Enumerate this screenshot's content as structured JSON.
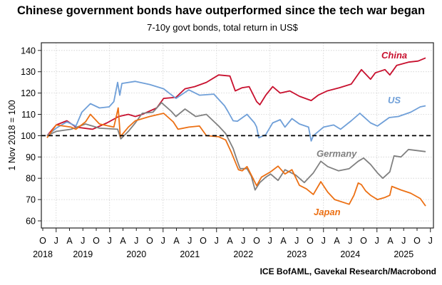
{
  "chart_data": {
    "type": "line",
    "title": "Chinese government bonds have outperformed since the tech war began",
    "subtitle": "7-10y govt bonds, total return in US$",
    "ylabel": "1 Nov 2018 = 100",
    "xlabel": "",
    "source": "ICE BofAML, Gavekal Research/Macrobond",
    "ylim": [
      58,
      142
    ],
    "xlim": [
      2018.72,
      2026.02
    ],
    "yticks": [
      60,
      70,
      80,
      90,
      100,
      110,
      120,
      130,
      140
    ],
    "reference_line": 100,
    "grid": true,
    "month_tick_labels": [
      "O",
      "J",
      "A",
      "J",
      "O",
      "J",
      "A",
      "J",
      "O",
      "J",
      "A",
      "J",
      "O",
      "J",
      "A",
      "J",
      "O",
      "J",
      "A",
      "J",
      "O",
      "J",
      "A",
      "J",
      "O",
      "J",
      "A",
      "J",
      "O",
      "J"
    ],
    "year_labels": [
      {
        "label": "2018",
        "at": 2018.75
      },
      {
        "label": "2019",
        "at": 2019.5
      },
      {
        "label": "2020",
        "at": 2020.5
      },
      {
        "label": "2021",
        "at": 2021.5
      },
      {
        "label": "2022",
        "at": 2022.5
      },
      {
        "label": "2023",
        "at": 2023.5
      },
      {
        "label": "2024",
        "at": 2024.5
      },
      {
        "label": "2025",
        "at": 2025.5
      }
    ],
    "series": [
      {
        "name": "China",
        "color": "#c8102e",
        "legend_position": "top-right",
        "points": [
          [
            2018.83,
            100
          ],
          [
            2019.0,
            105
          ],
          [
            2019.2,
            107
          ],
          [
            2019.37,
            104
          ],
          [
            2019.68,
            103
          ],
          [
            2019.95,
            106
          ],
          [
            2020.17,
            109
          ],
          [
            2020.35,
            110
          ],
          [
            2020.48,
            109
          ],
          [
            2020.61,
            110
          ],
          [
            2020.88,
            113
          ],
          [
            2021.01,
            117.5
          ],
          [
            2021.24,
            118
          ],
          [
            2021.41,
            122
          ],
          [
            2021.59,
            123
          ],
          [
            2021.81,
            125
          ],
          [
            2022.04,
            128.5
          ],
          [
            2022.25,
            128
          ],
          [
            2022.35,
            121
          ],
          [
            2022.48,
            122.5
          ],
          [
            2022.61,
            123
          ],
          [
            2022.75,
            116
          ],
          [
            2022.81,
            114.5
          ],
          [
            2022.92,
            119
          ],
          [
            2023.05,
            123
          ],
          [
            2023.19,
            120
          ],
          [
            2023.37,
            121
          ],
          [
            2023.55,
            118.5
          ],
          [
            2023.77,
            116.5
          ],
          [
            2023.9,
            119
          ],
          [
            2024.07,
            121
          ],
          [
            2024.3,
            122.5
          ],
          [
            2024.52,
            124.2
          ],
          [
            2024.71,
            131
          ],
          [
            2024.88,
            126.5
          ],
          [
            2024.97,
            129.5
          ],
          [
            2025.15,
            131
          ],
          [
            2025.24,
            128.5
          ],
          [
            2025.37,
            133
          ],
          [
            2025.59,
            134.5
          ],
          [
            2025.77,
            135
          ],
          [
            2025.91,
            136.5
          ]
        ]
      },
      {
        "name": "US",
        "color": "#6f9fd8",
        "legend_position": "right",
        "points": [
          [
            2018.83,
            100
          ],
          [
            2019.0,
            103.5
          ],
          [
            2019.2,
            106.5
          ],
          [
            2019.37,
            104.5
          ],
          [
            2019.48,
            111
          ],
          [
            2019.64,
            115
          ],
          [
            2019.81,
            113
          ],
          [
            2019.99,
            113.5
          ],
          [
            2020.08,
            116
          ],
          [
            2020.15,
            125
          ],
          [
            2020.19,
            119
          ],
          [
            2020.23,
            124.5
          ],
          [
            2020.48,
            125.5
          ],
          [
            2020.75,
            124
          ],
          [
            2021.01,
            122
          ],
          [
            2021.24,
            117.5
          ],
          [
            2021.48,
            121.5
          ],
          [
            2021.68,
            119
          ],
          [
            2021.95,
            119.5
          ],
          [
            2022.15,
            114
          ],
          [
            2022.21,
            111.5
          ],
          [
            2022.31,
            107
          ],
          [
            2022.39,
            106.8
          ],
          [
            2022.57,
            110
          ],
          [
            2022.71,
            106
          ],
          [
            2022.75,
            104
          ],
          [
            2022.79,
            99
          ],
          [
            2022.92,
            100.5
          ],
          [
            2023.05,
            106
          ],
          [
            2023.19,
            107.5
          ],
          [
            2023.28,
            104
          ],
          [
            2023.41,
            108
          ],
          [
            2023.55,
            105.5
          ],
          [
            2023.72,
            104
          ],
          [
            2023.77,
            97.5
          ],
          [
            2023.81,
            100
          ],
          [
            2024.0,
            104
          ],
          [
            2024.19,
            105
          ],
          [
            2024.32,
            103
          ],
          [
            2024.52,
            107
          ],
          [
            2024.68,
            110.5
          ],
          [
            2024.88,
            106
          ],
          [
            2025.01,
            104.5
          ],
          [
            2025.23,
            108.5
          ],
          [
            2025.4,
            109
          ],
          [
            2025.63,
            111
          ],
          [
            2025.81,
            113.5
          ],
          [
            2025.91,
            114
          ]
        ]
      },
      {
        "name": "Germany",
        "color": "#808080",
        "legend_position": "center-right",
        "points": [
          [
            2018.83,
            100
          ],
          [
            2019.0,
            102
          ],
          [
            2019.28,
            103
          ],
          [
            2019.55,
            105.5
          ],
          [
            2019.81,
            103.5
          ],
          [
            2020.15,
            103
          ],
          [
            2020.21,
            98.5
          ],
          [
            2020.35,
            102
          ],
          [
            2020.48,
            106
          ],
          [
            2020.61,
            110.5
          ],
          [
            2020.81,
            111
          ],
          [
            2020.97,
            115.5
          ],
          [
            2021.15,
            111.5
          ],
          [
            2021.24,
            109
          ],
          [
            2021.41,
            112.5
          ],
          [
            2021.61,
            109
          ],
          [
            2021.81,
            110
          ],
          [
            2022.04,
            104.5
          ],
          [
            2022.17,
            101
          ],
          [
            2022.31,
            94
          ],
          [
            2022.39,
            88
          ],
          [
            2022.44,
            84.5
          ],
          [
            2022.57,
            84.5
          ],
          [
            2022.65,
            81
          ],
          [
            2022.72,
            74.5
          ],
          [
            2022.81,
            78
          ],
          [
            2022.92,
            80.5
          ],
          [
            2023.01,
            82
          ],
          [
            2023.15,
            79
          ],
          [
            2023.28,
            84
          ],
          [
            2023.48,
            81.5
          ],
          [
            2023.64,
            78
          ],
          [
            2023.81,
            82.5
          ],
          [
            2023.95,
            88
          ],
          [
            2024.08,
            85.5
          ],
          [
            2024.28,
            83.5
          ],
          [
            2024.48,
            84.5
          ],
          [
            2024.65,
            88
          ],
          [
            2024.75,
            89.5
          ],
          [
            2024.88,
            86.5
          ],
          [
            2025.01,
            82.5
          ],
          [
            2025.11,
            80
          ],
          [
            2025.24,
            83
          ],
          [
            2025.32,
            90.5
          ],
          [
            2025.45,
            90
          ],
          [
            2025.59,
            93.5
          ],
          [
            2025.75,
            93
          ],
          [
            2025.91,
            92.5
          ]
        ]
      },
      {
        "name": "Japan",
        "color": "#ec7014",
        "legend_position": "bottom-right",
        "points": [
          [
            2018.83,
            99
          ],
          [
            2019.0,
            105
          ],
          [
            2019.28,
            104
          ],
          [
            2019.37,
            103
          ],
          [
            2019.55,
            106.5
          ],
          [
            2019.64,
            110
          ],
          [
            2019.81,
            105.5
          ],
          [
            2020.08,
            104
          ],
          [
            2020.16,
            113
          ],
          [
            2020.2,
            99.5
          ],
          [
            2020.35,
            104
          ],
          [
            2020.48,
            107
          ],
          [
            2020.75,
            109
          ],
          [
            2021.01,
            110.5
          ],
          [
            2021.19,
            106.5
          ],
          [
            2021.28,
            103
          ],
          [
            2021.48,
            104
          ],
          [
            2021.68,
            104.5
          ],
          [
            2021.81,
            100
          ],
          [
            2022.04,
            99.5
          ],
          [
            2022.17,
            98
          ],
          [
            2022.28,
            92
          ],
          [
            2022.41,
            84
          ],
          [
            2022.48,
            83.5
          ],
          [
            2022.57,
            85.5
          ],
          [
            2022.68,
            80
          ],
          [
            2022.75,
            76.5
          ],
          [
            2022.84,
            80.5
          ],
          [
            2023.01,
            83
          ],
          [
            2023.15,
            85.7
          ],
          [
            2023.28,
            82
          ],
          [
            2023.41,
            84
          ],
          [
            2023.55,
            76.7
          ],
          [
            2023.68,
            75
          ],
          [
            2023.81,
            72.4
          ],
          [
            2023.95,
            78.4
          ],
          [
            2024.08,
            73.5
          ],
          [
            2024.21,
            70
          ],
          [
            2024.48,
            67.8
          ],
          [
            2024.57,
            72
          ],
          [
            2024.65,
            77.8
          ],
          [
            2024.71,
            77
          ],
          [
            2024.79,
            74
          ],
          [
            2024.88,
            72
          ],
          [
            2025.01,
            70
          ],
          [
            2025.15,
            71
          ],
          [
            2025.24,
            72
          ],
          [
            2025.28,
            76.2
          ],
          [
            2025.45,
            74.5
          ],
          [
            2025.63,
            73
          ],
          [
            2025.81,
            70.5
          ],
          [
            2025.91,
            67
          ]
        ]
      }
    ]
  }
}
